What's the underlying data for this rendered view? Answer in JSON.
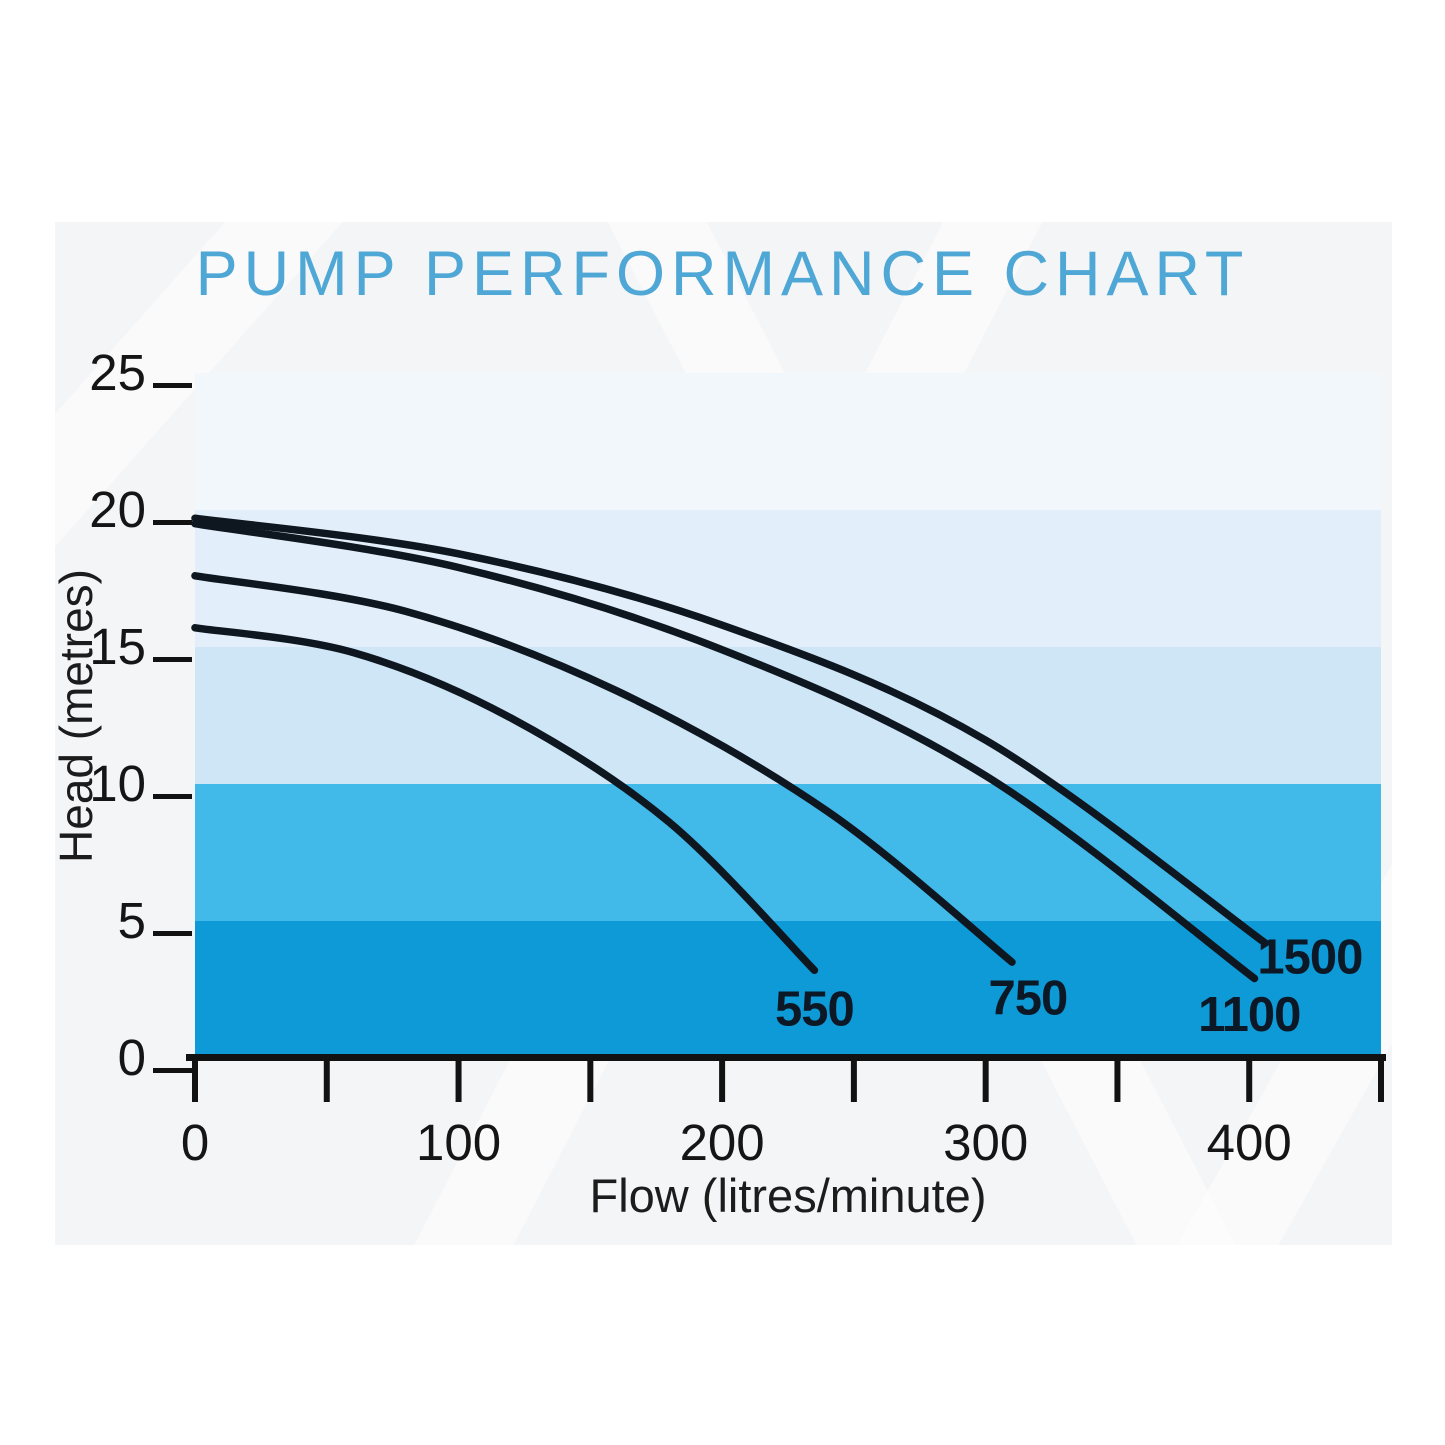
{
  "page": {
    "background_color": "#ffffff",
    "panel_color": "#f4f5f7"
  },
  "chart_data": {
    "type": "line",
    "title": "PUMP PERFORMANCE CHART",
    "title_color": "#4fa7d6",
    "xlabel": "Flow (litres/minute)",
    "ylabel": "Head (metres)",
    "xlim": [
      0,
      450
    ],
    "ylim": [
      0,
      25
    ],
    "x_tick_interval": 50,
    "x_tick_labels": [
      0,
      100,
      200,
      300,
      400
    ],
    "y_tick_labels": [
      0,
      5,
      10,
      15,
      20,
      25
    ],
    "grid": false,
    "legend_position": "inline-curve-labels",
    "axis_color": "#121212",
    "tick_label_color": "#151515",
    "curve_color": "#0e1720",
    "curve_label_color": "#0c1825",
    "background_bands": [
      {
        "from": 20,
        "to": 25,
        "color": "#f2f7fb"
      },
      {
        "from": 15,
        "to": 20,
        "color": "#e2eefa"
      },
      {
        "from": 10,
        "to": 15,
        "color": "#cfe6f7"
      },
      {
        "from": 5,
        "to": 10,
        "color": "#41b9e9"
      },
      {
        "from": 0,
        "to": 5,
        "color": "#0d9ad6"
      }
    ],
    "series": [
      {
        "name": "550",
        "points": [
          [
            0,
            15.7
          ],
          [
            60,
            14.8
          ],
          [
            120,
            12.4
          ],
          [
            180,
            8.6
          ],
          [
            235,
            3.2
          ]
        ],
        "label_at": [
          235,
          1.8
        ]
      },
      {
        "name": "750",
        "points": [
          [
            0,
            17.6
          ],
          [
            80,
            16.3
          ],
          [
            160,
            13.4
          ],
          [
            240,
            9.0
          ],
          [
            310,
            3.5
          ]
        ],
        "label_at": [
          316,
          2.2
        ]
      },
      {
        "name": "1100",
        "points": [
          [
            0,
            19.5
          ],
          [
            100,
            17.9
          ],
          [
            200,
            14.9
          ],
          [
            300,
            10.3
          ],
          [
            402,
            2.9
          ]
        ],
        "label_at": [
          400,
          1.6
        ]
      },
      {
        "name": "1500",
        "points": [
          [
            0,
            19.7
          ],
          [
            100,
            18.4
          ],
          [
            200,
            15.8
          ],
          [
            300,
            11.6
          ],
          [
            406,
            4.2
          ]
        ],
        "label_at": [
          423,
          3.7
        ]
      }
    ]
  }
}
